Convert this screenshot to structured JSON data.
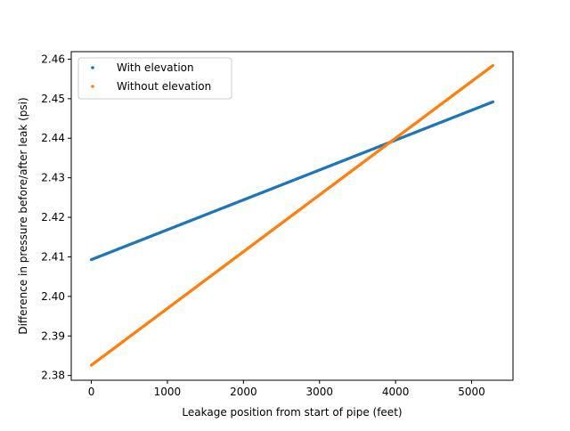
{
  "chart_data": {
    "type": "scatter",
    "title": "",
    "xlabel": "Leakage position from start of pipe (feet)",
    "ylabel": "Difference in pressure before/after leak (psi)",
    "xlim": [
      -264,
      5544
    ],
    "ylim": [
      2.3788,
      2.4619
    ],
    "xticks": [
      0,
      1000,
      2000,
      3000,
      4000,
      5000
    ],
    "xtick_labels": [
      "0",
      "1000",
      "2000",
      "3000",
      "4000",
      "5000"
    ],
    "yticks": [
      2.38,
      2.39,
      2.4,
      2.41,
      2.42,
      2.43,
      2.44,
      2.45,
      2.46
    ],
    "ytick_labels": [
      "2.38",
      "2.39",
      "2.40",
      "2.41",
      "2.42",
      "2.43",
      "2.44",
      "2.45",
      "2.46"
    ],
    "grid": false,
    "legend_position": "top-left",
    "x_range": [
      0,
      5280
    ],
    "series": [
      {
        "name": "With elevation",
        "color": "#1f77b4",
        "y_start": 2.4093,
        "y_end": 2.4492
      },
      {
        "name": "Without elevation",
        "color": "#ff7f0e",
        "y_start": 2.3826,
        "y_end": 2.4584
      }
    ]
  }
}
